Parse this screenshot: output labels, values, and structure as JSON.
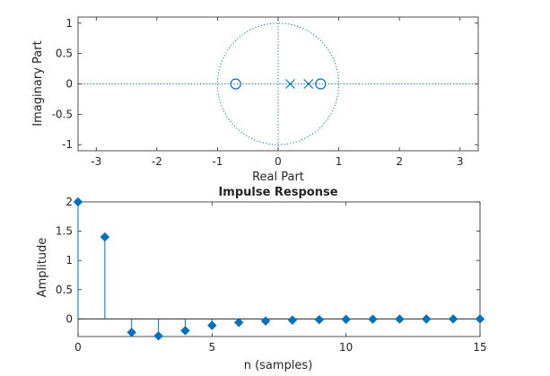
{
  "colors": {
    "data": "#0072BD",
    "axis": "#262626",
    "background": "#ffffff"
  },
  "chart_data": [
    {
      "type": "scatter",
      "subtype": "pole-zero",
      "title": "",
      "xlabel": "Real Part",
      "ylabel": "Imaginary Part",
      "xlim": [
        -3.3,
        3.3
      ],
      "ylim": [
        -1.1,
        1.1
      ],
      "xticks": [
        -3,
        -2,
        -1,
        0,
        1,
        2,
        3
      ],
      "xtick_labels": [
        "-3",
        "-2",
        "-1",
        "0",
        "1",
        "2",
        "3"
      ],
      "yticks": [
        -1,
        -0.5,
        0,
        0.5,
        1
      ],
      "ytick_labels": [
        "-1",
        "-0.5",
        "0",
        "0.5",
        "1"
      ],
      "unit_circle": true,
      "zeros": [
        {
          "re": -0.7,
          "im": 0
        },
        {
          "re": 0.7,
          "im": 0
        }
      ],
      "poles": [
        {
          "re": 0.2,
          "im": 0
        },
        {
          "re": 0.5,
          "im": 0
        }
      ]
    },
    {
      "type": "stem",
      "title": "Impulse Response",
      "xlabel": "n (samples)",
      "ylabel": "Amplitude",
      "xlim": [
        0,
        15
      ],
      "ylim": [
        -0.3,
        2
      ],
      "xticks": [
        0,
        5,
        10,
        15
      ],
      "xtick_labels": [
        "0",
        "5",
        "10",
        "15"
      ],
      "yticks": [
        0,
        0.5,
        1,
        1.5,
        2
      ],
      "ytick_labels": [
        "0",
        "0.5",
        "1",
        "1.5",
        "2"
      ],
      "x": [
        0,
        1,
        2,
        3,
        4,
        5,
        6,
        7,
        8,
        9,
        10,
        11,
        12,
        13,
        14,
        15
      ],
      "values": [
        2.0,
        1.4,
        -0.23,
        -0.29,
        -0.2,
        -0.11,
        -0.06,
        -0.035,
        -0.02,
        -0.012,
        -0.007,
        -0.004,
        -0.002,
        -0.001,
        -0.0005,
        -0.0003
      ]
    }
  ]
}
